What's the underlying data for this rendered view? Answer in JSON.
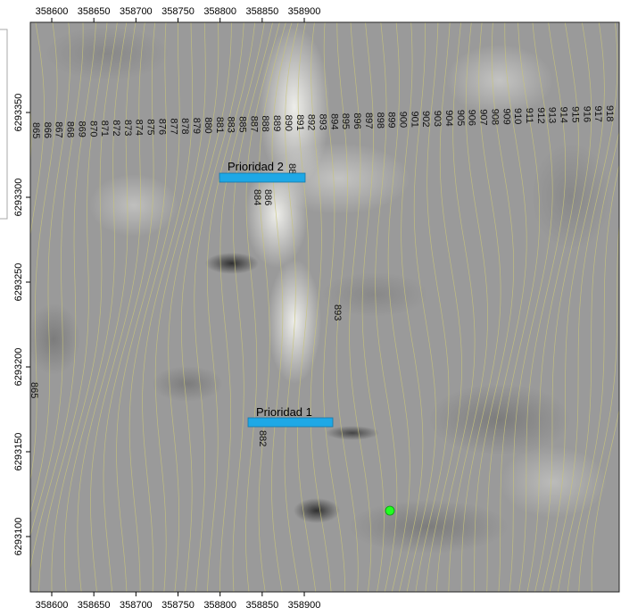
{
  "map": {
    "axes": {
      "x_ticks": [
        "358600",
        "358650",
        "358700",
        "358750",
        "358800",
        "358850",
        "358900"
      ],
      "y_ticks": [
        "6293350",
        "6293300",
        "6293250",
        "6293200",
        "6293150",
        "6293100"
      ]
    },
    "contour_row_labels": [
      "865",
      "866",
      "867",
      "868",
      "869",
      "870",
      "871",
      "872",
      "873",
      "874",
      "875",
      "876",
      "877",
      "878",
      "879",
      "880",
      "881",
      "883",
      "885",
      "887",
      "888",
      "889",
      "890",
      "891",
      "892",
      "893",
      "894",
      "895",
      "896",
      "897",
      "898",
      "899",
      "900",
      "901",
      "902",
      "903",
      "904",
      "905",
      "906",
      "907",
      "908",
      "909",
      "910",
      "911",
      "912",
      "913",
      "914",
      "915",
      "916",
      "917",
      "918"
    ],
    "contour_extra_labels": [
      "888",
      "886",
      "884",
      "893",
      "882",
      "865"
    ],
    "priorities": [
      {
        "label": "Prioridad 2"
      },
      {
        "label": "Prioridad 1"
      }
    ],
    "point_marker": {
      "kind": "green-point"
    },
    "colors": {
      "priority_bar": "#1ea8e6",
      "priority_bar_stroke": "#1577a8",
      "contour": "#c8c47a",
      "point": "#22ff22"
    }
  }
}
